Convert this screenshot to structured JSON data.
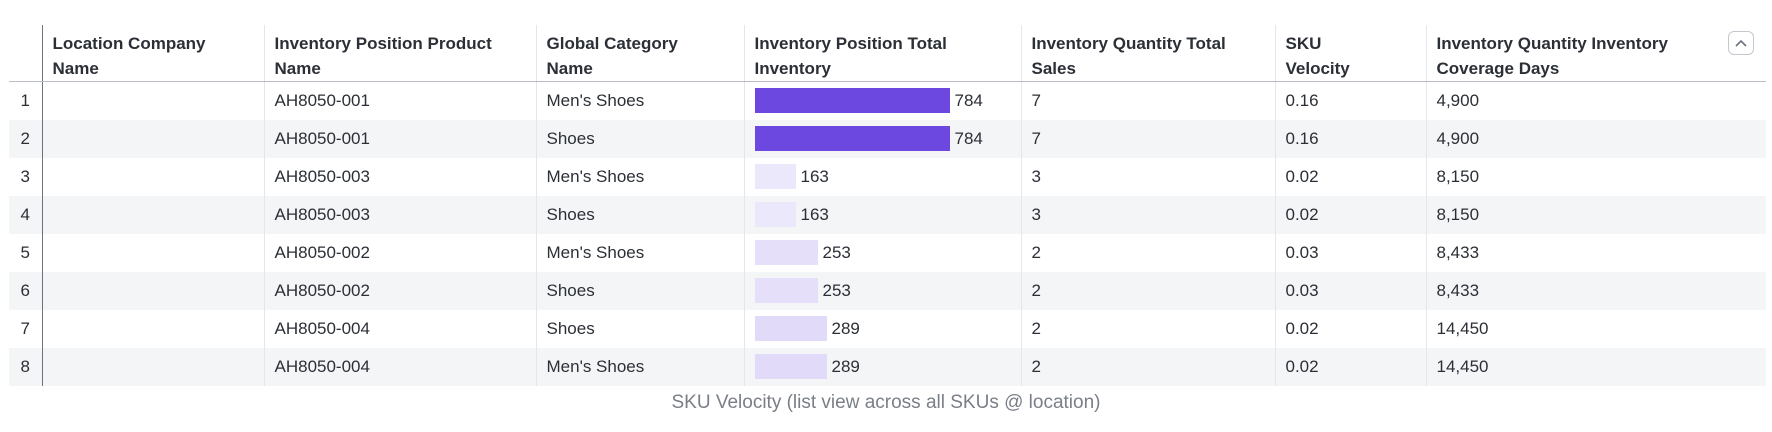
{
  "table": {
    "columns": [
      {
        "key": "location_company_name",
        "label": "Location Company Name",
        "lines": [
          "Location Company",
          "Name"
        ]
      },
      {
        "key": "product_name",
        "label": "Inventory Position Product Name",
        "lines": [
          "Inventory Position Product",
          "Name"
        ]
      },
      {
        "key": "category",
        "label": "Global Category Name",
        "lines": [
          "Global Category",
          "Name"
        ]
      },
      {
        "key": "total_inventory",
        "label": "Inventory Position Total Inventory",
        "lines": [
          "Inventory Position Total",
          "Inventory"
        ]
      },
      {
        "key": "total_sales",
        "label": "Inventory Quantity Total Sales",
        "lines": [
          "Inventory Quantity Total",
          "Sales"
        ]
      },
      {
        "key": "sku_velocity",
        "label": "SKU Velocity",
        "lines": [
          "SKU",
          "Velocity"
        ]
      },
      {
        "key": "coverage_days",
        "label": "Inventory Quantity Inventory Coverage Days",
        "lines": [
          "Inventory Quantity Inventory",
          "Coverage Days"
        ]
      }
    ],
    "rows": [
      {
        "num": "1",
        "location": "",
        "product": "AH8050-001",
        "category": "Men's Shoes",
        "inventory": 784,
        "inventory_label": "784",
        "sales": "7",
        "velocity": "0.16",
        "coverage": "4,900"
      },
      {
        "num": "2",
        "location": "",
        "product": "AH8050-001",
        "category": "Shoes",
        "inventory": 784,
        "inventory_label": "784",
        "sales": "7",
        "velocity": "0.16",
        "coverage": "4,900"
      },
      {
        "num": "3",
        "location": "",
        "product": "AH8050-003",
        "category": "Men's Shoes",
        "inventory": 163,
        "inventory_label": "163",
        "sales": "3",
        "velocity": "0.02",
        "coverage": "8,150"
      },
      {
        "num": "4",
        "location": "",
        "product": "AH8050-003",
        "category": "Shoes",
        "inventory": 163,
        "inventory_label": "163",
        "sales": "3",
        "velocity": "0.02",
        "coverage": "8,150"
      },
      {
        "num": "5",
        "location": "",
        "product": "AH8050-002",
        "category": "Men's Shoes",
        "inventory": 253,
        "inventory_label": "253",
        "sales": "2",
        "velocity": "0.03",
        "coverage": "8,433"
      },
      {
        "num": "6",
        "location": "",
        "product": "AH8050-002",
        "category": "Shoes",
        "inventory": 253,
        "inventory_label": "253",
        "sales": "2",
        "velocity": "0.03",
        "coverage": "8,433"
      },
      {
        "num": "7",
        "location": "",
        "product": "AH8050-004",
        "category": "Shoes",
        "inventory": 289,
        "inventory_label": "289",
        "sales": "2",
        "velocity": "0.02",
        "coverage": "14,450"
      },
      {
        "num": "8",
        "location": "",
        "product": "AH8050-004",
        "category": "Men's Shoes",
        "inventory": 289,
        "inventory_label": "289",
        "sales": "2",
        "velocity": "0.02",
        "coverage": "14,450"
      }
    ],
    "inventory_max": 784,
    "bar_color_high": "#6c47e0",
    "bar_color_low": "#ece8fb"
  },
  "collapse_icon": "chevron-up-icon",
  "caption": "SKU Velocity (list view across all SKUs @ location)"
}
